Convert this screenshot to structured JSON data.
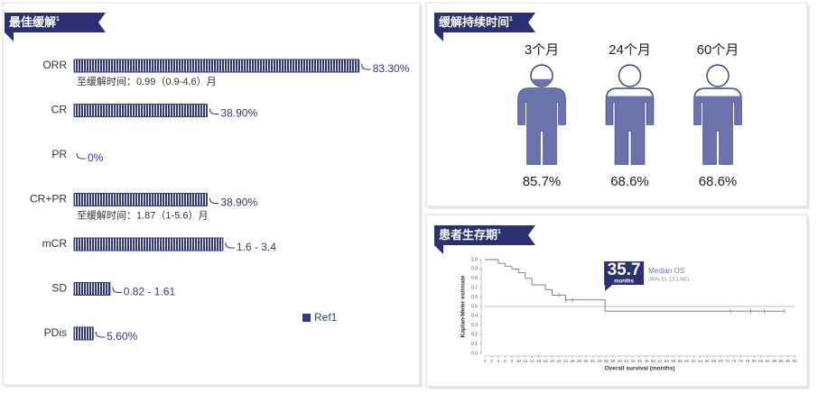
{
  "chart_data": [
    {
      "type": "bar",
      "title": "最佳缓解",
      "title_note": "1",
      "categories": [
        "ORR",
        "CR",
        "PR",
        "CR+PR",
        "mCR",
        "SD",
        "PDis"
      ],
      "values": [
        83.3,
        38.9,
        0,
        38.9,
        43.5,
        10.5,
        5.6
      ],
      "value_labels": [
        "83.30%",
        "38.90%",
        "0%",
        "38.90%",
        "1.6 - 3.4",
        "0.82 - 1.61",
        "5.60%"
      ],
      "notes": [
        "至缓解时间：0.99（0.9-4.6）月",
        null,
        null,
        "至缓解时间：1.87（1-5.6）月",
        null,
        null,
        null
      ],
      "series_name": "Ref1",
      "color": "#2f3a7c",
      "xlim": [
        0,
        100
      ]
    },
    {
      "type": "pictogram",
      "title": "缓解持续时间",
      "title_note": "1",
      "categories": [
        "3个月",
        "24个月",
        "60个月"
      ],
      "values": [
        85.7,
        68.6,
        68.6
      ],
      "value_labels": [
        "85.7%",
        "68.6%",
        "68.6%"
      ],
      "color": "#6b73ad",
      "ylim": [
        0,
        100
      ]
    },
    {
      "type": "line",
      "title": "患者生存期",
      "title_note": "1",
      "step": true,
      "x": [
        0,
        4,
        6,
        8,
        10,
        12,
        14,
        18,
        20,
        24,
        35.7,
        89
      ],
      "values": [
        1.0,
        0.96,
        0.93,
        0.9,
        0.86,
        0.8,
        0.73,
        0.68,
        0.62,
        0.57,
        0.45,
        0.45
      ],
      "censored": [
        22,
        24,
        26,
        73,
        79,
        83,
        89
      ],
      "reference_line": 0.5,
      "xlim": [
        0,
        92
      ],
      "ylim": [
        0,
        1.0
      ],
      "xticks": [
        0,
        2,
        4,
        6,
        8,
        10,
        12,
        14,
        16,
        18,
        20,
        22,
        24,
        26,
        28,
        30,
        32,
        34,
        36,
        38,
        40,
        42,
        44,
        46,
        48,
        50,
        52,
        54,
        56,
        58,
        60,
        62,
        64,
        66,
        68,
        70,
        72,
        74,
        76,
        78,
        80,
        82,
        84,
        86,
        88,
        90,
        92
      ],
      "yticks": [
        {
          "value": 0,
          "label": "0.0"
        },
        0.1,
        0.2,
        0.3,
        0.4,
        0.5,
        0.6,
        0.7,
        0.8,
        0.9,
        {
          "value": 1,
          "label": "1.0"
        }
      ],
      "xlabel": "Overall survival (months)",
      "ylabel": "Kaplan-Meier estimate",
      "median": {
        "value": 35.7,
        "unit": "months",
        "text": "Median OS",
        "ci": "(95% CI, 13.1-NE)"
      },
      "color": "#777777"
    }
  ]
}
